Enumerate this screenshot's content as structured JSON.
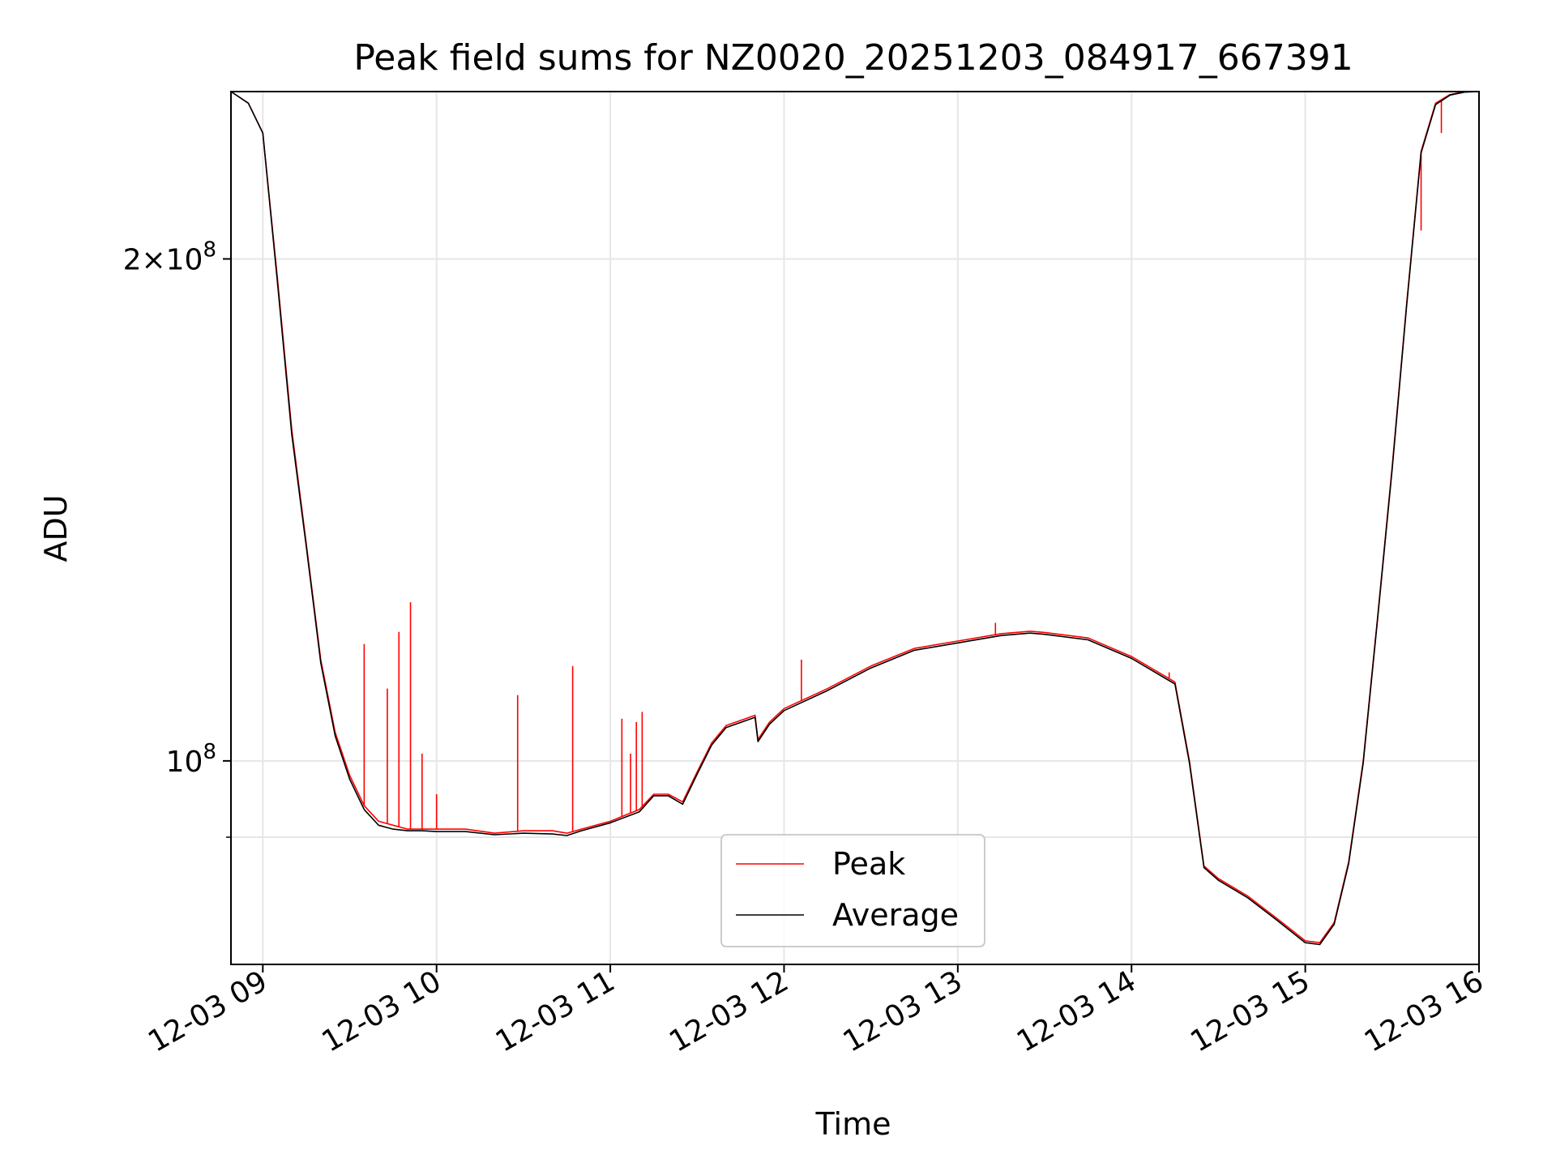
{
  "chart_data": {
    "type": "line",
    "title": "Peak field sums for NZ0020_20251203_084917_667391",
    "xlabel": "Time",
    "ylabel": "ADU",
    "yscale": "log",
    "grid": true,
    "legend_position": "lower center",
    "xlim": [
      "2025-12-03 08:49",
      "2025-12-03 16:00"
    ],
    "ylim": [
      75500000,
      252000000
    ],
    "x_ticks": [
      "12-03 09",
      "12-03 10",
      "12-03 11",
      "12-03 12",
      "12-03 13",
      "12-03 14",
      "12-03 15",
      "12-03 16"
    ],
    "x_tick_times": [
      "2025-12-03 09:00",
      "2025-12-03 10:00",
      "2025-12-03 11:00",
      "2025-12-03 12:00",
      "2025-12-03 13:00",
      "2025-12-03 14:00",
      "2025-12-03 15:00",
      "2025-12-03 16:00"
    ],
    "y_ticks": [
      {
        "value": 100000000,
        "base": "10",
        "exp": "8",
        "coef": ""
      },
      {
        "value": 200000000,
        "base": "10",
        "exp": "8",
        "coef": "2"
      }
    ],
    "y_minor_ticks": [
      90000000
    ],
    "series": [
      {
        "name": "Peak",
        "color": "#ff0000",
        "x": [
          "08:49",
          "08:55",
          "09:00",
          "09:05",
          "09:10",
          "09:15",
          "09:20",
          "09:25",
          "09:30",
          "09:35",
          "09:40",
          "09:45",
          "09:50",
          "09:55",
          "10:00",
          "10:10",
          "10:20",
          "10:30",
          "10:40",
          "10:45",
          "10:50",
          "11:00",
          "11:10",
          "11:15",
          "11:20",
          "11:25",
          "11:30",
          "11:35",
          "11:40",
          "11:50",
          "11:51",
          "11:55",
          "12:00",
          "12:15",
          "12:30",
          "12:45",
          "13:00",
          "13:15",
          "13:25",
          "13:30",
          "13:45",
          "14:00",
          "14:15",
          "14:20",
          "14:25",
          "14:30",
          "14:40",
          "14:50",
          "15:00",
          "15:05",
          "15:10",
          "15:15",
          "15:20",
          "15:25",
          "15:30",
          "15:35",
          "15:40",
          "15:45",
          "15:50",
          "15:55",
          "16:00"
        ],
        "y": [
          252000000,
          248000000,
          238000000,
          195000000,
          158000000,
          135000000,
          115000000,
          104000000,
          98000000,
          94000000,
          92000000,
          91500000,
          91000000,
          91000000,
          91000000,
          91000000,
          90500000,
          90800000,
          90800000,
          90500000,
          91000000,
          92000000,
          93500000,
          95500000,
          95500000,
          94500000,
          98500000,
          102500000,
          105000000,
          106500000,
          103000000,
          105500000,
          107500000,
          110500000,
          114000000,
          116800000,
          118000000,
          119200000,
          119600000,
          119400000,
          118500000,
          115500000,
          111500000,
          100000000,
          86500000,
          85000000,
          83000000,
          80500000,
          78000000,
          77800000,
          80000000,
          87000000,
          100000000,
          122000000,
          150000000,
          188000000,
          232000000,
          248000000,
          251000000,
          252000000,
          252000000
        ],
        "spikes": [
          {
            "x": "09:35",
            "y": 117500000
          },
          {
            "x": "09:43",
            "y": 110500000
          },
          {
            "x": "09:47",
            "y": 119500000
          },
          {
            "x": "09:51",
            "y": 124500000
          },
          {
            "x": "09:55",
            "y": 101000000
          },
          {
            "x": "10:00",
            "y": 95500000
          },
          {
            "x": "10:28",
            "y": 109500000
          },
          {
            "x": "10:47",
            "y": 114000000
          },
          {
            "x": "11:04",
            "y": 106000000
          },
          {
            "x": "11:07",
            "y": 101000000
          },
          {
            "x": "11:09",
            "y": 105500000
          },
          {
            "x": "11:11",
            "y": 107000000
          },
          {
            "x": "12:06",
            "y": 115000000
          },
          {
            "x": "13:13",
            "y": 121000000
          },
          {
            "x": "14:13",
            "y": 113000000
          },
          {
            "x": "15:40",
            "y": 208000000
          },
          {
            "x": "15:47",
            "y": 238000000
          }
        ]
      },
      {
        "name": "Average",
        "color": "#000000",
        "x": [
          "08:49",
          "08:55",
          "09:00",
          "09:05",
          "09:10",
          "09:15",
          "09:20",
          "09:25",
          "09:30",
          "09:35",
          "09:40",
          "09:45",
          "09:50",
          "09:55",
          "10:00",
          "10:10",
          "10:20",
          "10:30",
          "10:40",
          "10:45",
          "10:50",
          "11:00",
          "11:10",
          "11:15",
          "11:20",
          "11:25",
          "11:30",
          "11:35",
          "11:40",
          "11:50",
          "11:51",
          "11:55",
          "12:00",
          "12:15",
          "12:30",
          "12:45",
          "13:00",
          "13:15",
          "13:25",
          "13:30",
          "13:45",
          "14:00",
          "14:15",
          "14:20",
          "14:25",
          "14:30",
          "14:40",
          "14:50",
          "15:00",
          "15:05",
          "15:10",
          "15:15",
          "15:20",
          "15:25",
          "15:30",
          "15:35",
          "15:40",
          "15:45",
          "15:50",
          "15:55",
          "16:00"
        ],
        "y": [
          252000000,
          248000000,
          238000000,
          194000000,
          157000000,
          134500000,
          114500000,
          103500000,
          97500000,
          93500000,
          91500000,
          91000000,
          90800000,
          90800000,
          90700000,
          90700000,
          90300000,
          90500000,
          90400000,
          90200000,
          90800000,
          91800000,
          93200000,
          95300000,
          95300000,
          94200000,
          98200000,
          102200000,
          104700000,
          106200000,
          102700000,
          105200000,
          107200000,
          110200000,
          113700000,
          116500000,
          117700000,
          118900000,
          119300000,
          119100000,
          118200000,
          115200000,
          111200000,
          99700000,
          86300000,
          84800000,
          82800000,
          80300000,
          77800000,
          77600000,
          79800000,
          86800000,
          99700000,
          121700000,
          149500000,
          187500000,
          231500000,
          247500000,
          250800000,
          251800000,
          252000000
        ]
      }
    ]
  }
}
